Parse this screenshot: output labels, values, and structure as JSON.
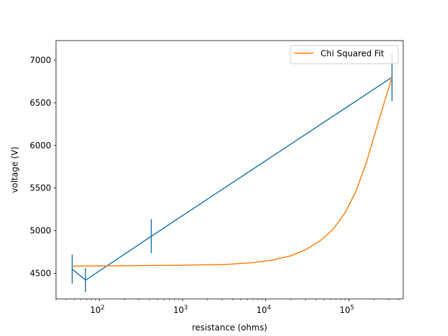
{
  "chart_data": {
    "type": "line",
    "title": "",
    "xlabel": "resistance (ohms)",
    "ylabel": "voltage (V)",
    "xscale": "log",
    "xlim": [
      30,
      450000
    ],
    "ylim": [
      4200,
      7230
    ],
    "grid": false,
    "legend_position": "top-right",
    "x_tick_labels": [
      {
        "value": 100,
        "base": "10",
        "exp": "2"
      },
      {
        "value": 1000,
        "base": "10",
        "exp": "3"
      },
      {
        "value": 10000,
        "base": "10",
        "exp": "4"
      },
      {
        "value": 100000,
        "base": "10",
        "exp": "5"
      }
    ],
    "y_ticks": [
      4500,
      5000,
      5500,
      6000,
      6500,
      7000
    ],
    "series": [
      {
        "kind": "errorbar",
        "color": "#1f77b4",
        "points": [
          {
            "x": 47,
            "y": 4550,
            "err": 170
          },
          {
            "x": 68,
            "y": 4420,
            "err": 140
          },
          {
            "x": 420,
            "y": 4935,
            "err": 200
          },
          {
            "x": 330000,
            "y": 6800,
            "err": 280
          }
        ]
      },
      {
        "name": "Chi Squared Fit",
        "kind": "line",
        "color": "#ff7f0e",
        "points": [
          {
            "x": 47,
            "y": 4585
          },
          {
            "x": 100,
            "y": 4587
          },
          {
            "x": 1000,
            "y": 4595
          },
          {
            "x": 3500,
            "y": 4605
          },
          {
            "x": 7000,
            "y": 4625
          },
          {
            "x": 12000,
            "y": 4655
          },
          {
            "x": 20000,
            "y": 4705
          },
          {
            "x": 30000,
            "y": 4775
          },
          {
            "x": 45000,
            "y": 4880
          },
          {
            "x": 65000,
            "y": 5020
          },
          {
            "x": 90000,
            "y": 5210
          },
          {
            "x": 120000,
            "y": 5450
          },
          {
            "x": 160000,
            "y": 5780
          },
          {
            "x": 210000,
            "y": 6170
          },
          {
            "x": 260000,
            "y": 6470
          },
          {
            "x": 330000,
            "y": 6800
          }
        ]
      }
    ]
  }
}
